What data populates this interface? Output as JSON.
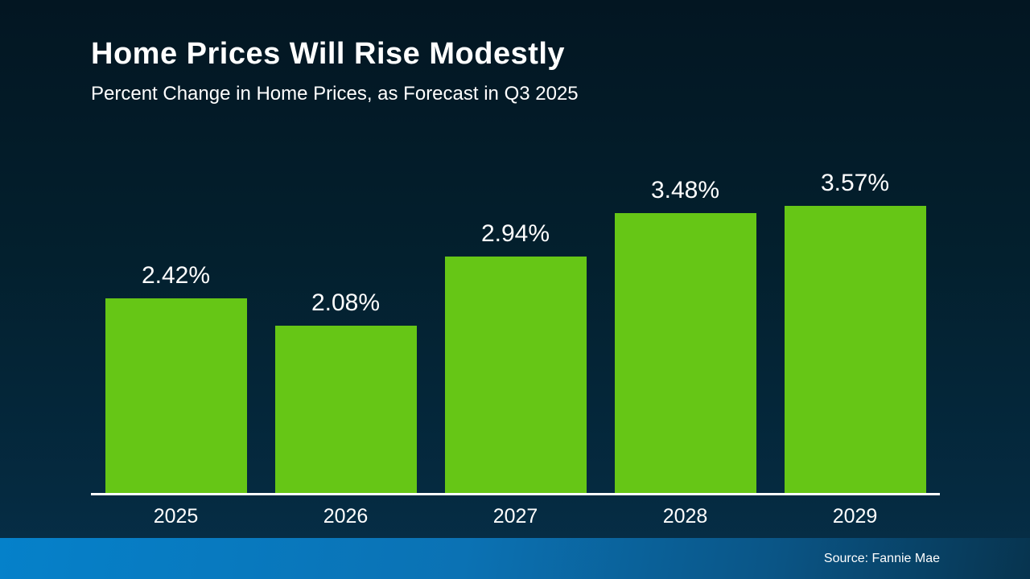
{
  "page": {
    "title": "Home Prices Will Rise Modestly",
    "subtitle": "Percent Change in Home Prices, as Forecast in Q3 2025",
    "source": "Source: Fannie Mae"
  },
  "colors": {
    "background_top": "#031622",
    "background_bottom": "#06304a",
    "bar_green": "#66c616",
    "footer_gradient_left": "#0581ca",
    "footer_gradient_right": "#07344f",
    "axis_line": "#ffffff",
    "text": "#ffffff"
  },
  "chart_data": {
    "type": "bar",
    "title": "Home Prices Will Rise Modestly",
    "subtitle": "Percent Change in Home Prices, as Forecast in Q3 2025",
    "categories": [
      "2025",
      "2026",
      "2027",
      "2028",
      "2029"
    ],
    "values": [
      2.42,
      2.08,
      2.94,
      3.48,
      3.57
    ],
    "value_labels": [
      "2.42%",
      "2.08%",
      "2.94%",
      "3.48%",
      "3.57%"
    ],
    "xlabel": "",
    "ylabel": "Percent change in home prices",
    "ylim": [
      0,
      4.2
    ],
    "grid": false,
    "legend": false,
    "bar_color": "#66c616",
    "source": "Source: Fannie Mae"
  }
}
